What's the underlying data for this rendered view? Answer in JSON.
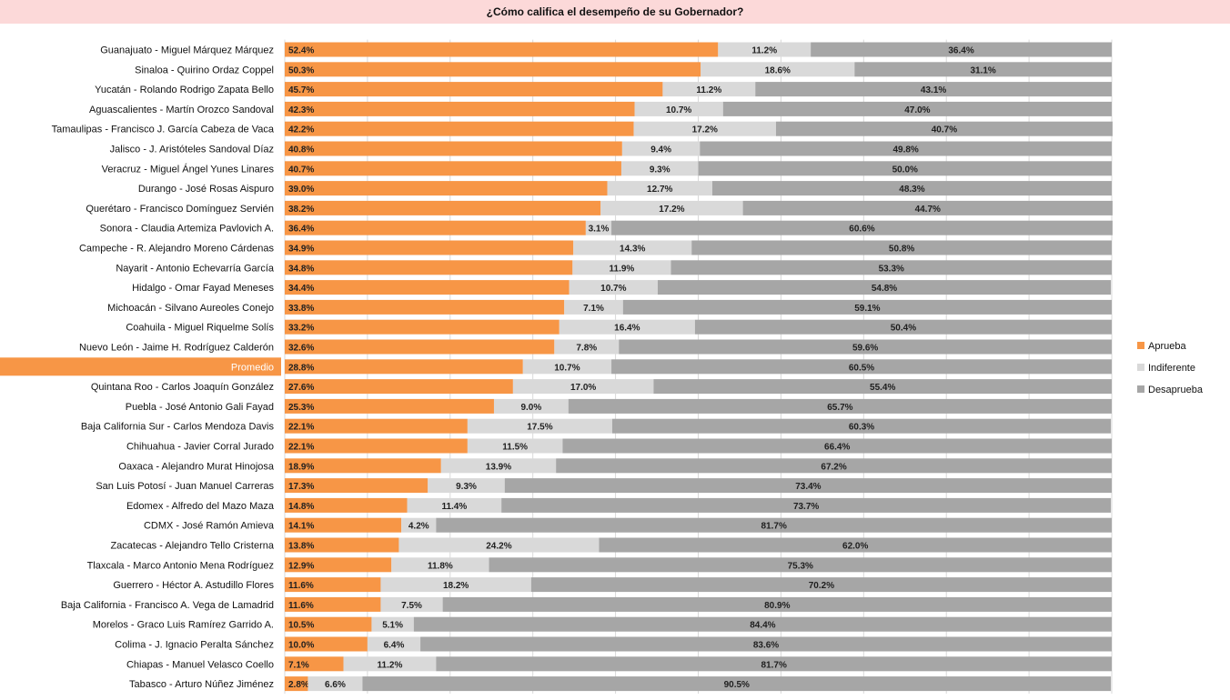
{
  "chart_data": {
    "type": "bar",
    "orientation": "horizontal",
    "stacked": true,
    "title": "¿Cómo califica el desempeño de su Gobernador?",
    "xlim": [
      0,
      100
    ],
    "grid": true,
    "legend": "right",
    "highlight_category": "Promedio",
    "colors": {
      "title_bg": "#fcd9d9",
      "Aprueba": "#f79646",
      "Indiferente": "#d9d9d9",
      "Desaprueba": "#a6a6a6",
      "highlight_row": "#f79646"
    },
    "categories": [
      "Guanajuato - Miguel Márquez Márquez",
      "Sinaloa - Quirino Ordaz Coppel",
      "Yucatán - Rolando Rodrigo Zapata Bello",
      "Aguascalientes - Martín Orozco Sandoval",
      "Tamaulipas - Francisco J. García Cabeza de Vaca",
      "Jalisco - J. Aristóteles Sandoval Díaz",
      "Veracruz - Miguel Ángel Yunes Linares",
      "Durango - José Rosas Aispuro",
      "Querétaro - Francisco Domínguez Servién",
      "Sonora - Claudia Artemiza Pavlovich A.",
      "Campeche - R. Alejandro Moreno Cárdenas",
      "Nayarit - Antonio Echevarría García",
      "Hidalgo - Omar Fayad Meneses",
      "Michoacán - Silvano Aureoles Conejo",
      "Coahuila - Miguel Riquelme Solís",
      "Nuevo León - Jaime H. Rodríguez Calderón",
      "Promedio",
      "Quintana Roo - Carlos Joaquín González",
      "Puebla - José Antonio Gali Fayad",
      "Baja California Sur - Carlos Mendoza Davis",
      "Chihuahua - Javier Corral Jurado",
      "Oaxaca - Alejandro Murat Hinojosa",
      "San Luis Potosí - Juan Manuel Carreras",
      "Edomex - Alfredo del Mazo Maza",
      "CDMX - José Ramón Amieva",
      "Zacatecas - Alejandro Tello Cristerna",
      "Tlaxcala - Marco Antonio Mena Rodríguez",
      "Guerrero - Héctor A. Astudillo Flores",
      "Baja California - Francisco A. Vega de Lamadrid",
      "Morelos - Graco Luis Ramírez Garrido A.",
      "Colima - J. Ignacio Peralta Sánchez",
      "Chiapas - Manuel Velasco Coello",
      "Tabasco - Arturo Núñez Jiménez"
    ],
    "series": [
      {
        "name": "Aprueba",
        "values": [
          52.4,
          50.3,
          45.7,
          42.3,
          42.2,
          40.8,
          40.7,
          39.0,
          38.2,
          36.4,
          34.9,
          34.8,
          34.4,
          33.8,
          33.2,
          32.6,
          28.8,
          27.6,
          25.3,
          22.1,
          22.1,
          18.9,
          17.3,
          14.8,
          14.1,
          13.8,
          12.9,
          11.6,
          11.6,
          10.5,
          10.0,
          7.1,
          2.8
        ],
        "labels": [
          "52.4%",
          "50.3%",
          "45.7%",
          "42.3%",
          "42.2%",
          "40.8%",
          "40.7%",
          "39.0%",
          "38.2%",
          "36.4%",
          "34.9%",
          "34.8%",
          "34.4%",
          "33.8%",
          "33.2%",
          "32.6%",
          "28.8%",
          "27.6%",
          "25.3%",
          "22.1%",
          "22.1%",
          "18.9%",
          "17.3%",
          "14.8%",
          "14.1%",
          "13.8%",
          "12.9%",
          "11.6%",
          "11.6%",
          "10.5%",
          "10.0%",
          "7.1%",
          "2.8%"
        ]
      },
      {
        "name": "Indiferente",
        "values": [
          11.2,
          18.6,
          11.2,
          10.7,
          17.2,
          9.4,
          9.3,
          12.7,
          17.2,
          3.1,
          14.3,
          11.9,
          10.7,
          7.1,
          16.4,
          7.8,
          10.7,
          17.0,
          9.0,
          17.5,
          11.5,
          13.9,
          9.3,
          11.4,
          4.2,
          24.2,
          11.8,
          18.2,
          7.5,
          5.1,
          6.4,
          11.2,
          6.6
        ],
        "labels": [
          "11.2%",
          "18.6%",
          "11.2%",
          "10.7%",
          "17.2%",
          "9.4%",
          "9.3%",
          "12.7%",
          "17.2%",
          "3.1%",
          "14.3%",
          "11.9%",
          "10.7%",
          "7.1%",
          "16.4%",
          "7.8%",
          "10.7%",
          "17.0%",
          "9.0%",
          "17.5%",
          "11.5%",
          "13.9%",
          "9.3%",
          "11.4%",
          "4.2%",
          "24.2%",
          "11.8%",
          "18.2%",
          "7.5%",
          "5.1%",
          "6.4%",
          "11.2%",
          "6.6%"
        ]
      },
      {
        "name": "Desaprueba",
        "values": [
          36.4,
          31.1,
          43.1,
          47.0,
          40.7,
          49.8,
          50.0,
          48.3,
          44.7,
          60.6,
          50.8,
          53.3,
          54.8,
          59.1,
          50.4,
          59.6,
          60.5,
          55.4,
          65.7,
          60.3,
          66.4,
          67.2,
          73.4,
          73.7,
          81.7,
          62.0,
          75.3,
          70.2,
          80.9,
          84.4,
          83.6,
          81.7,
          90.5
        ],
        "labels": [
          "36.4%",
          "31.1%",
          "43.1%",
          "47.0%",
          "40.7%",
          "49.8%",
          "50.0%",
          "48.3%",
          "44.7%",
          "60.6%",
          "50.8%",
          "53.3%",
          "54.8%",
          "59.1%",
          "50.4%",
          "59.6%",
          "60.5%",
          "55.4%",
          "65.7%",
          "60.3%",
          "66.4%",
          "67.2%",
          "73.4%",
          "73.7%",
          "81.7%",
          "62.0%",
          "75.3%",
          "70.2%",
          "80.9%",
          "84.4%",
          "83.6%",
          "81.7%",
          "90.5%"
        ]
      }
    ]
  }
}
